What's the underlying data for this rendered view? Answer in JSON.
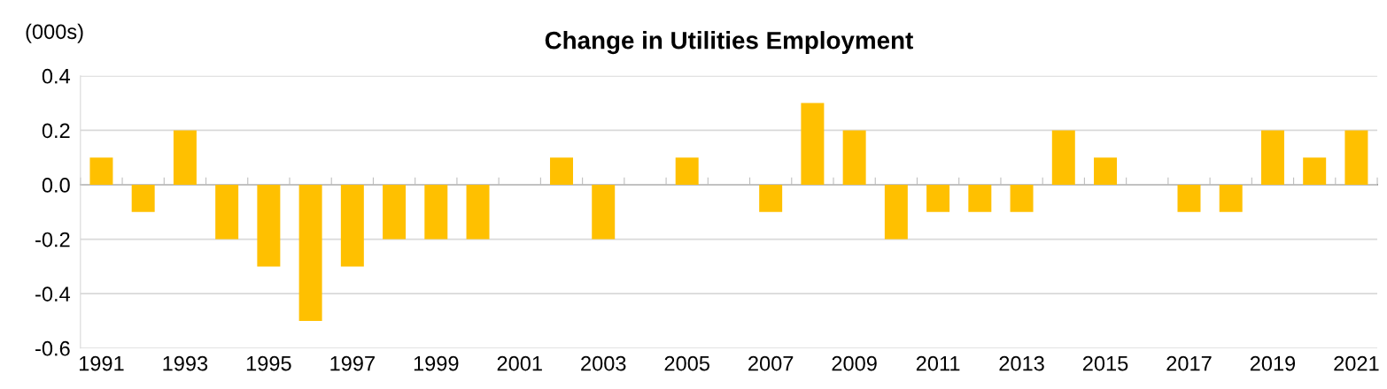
{
  "chart_data": {
    "type": "bar",
    "title": "Change in Utilities Employment",
    "ylabel": "(000s)",
    "categories": [
      "1991",
      null,
      "1993",
      null,
      "1995",
      null,
      "1997",
      null,
      "1999",
      null,
      "2001",
      null,
      "2003",
      null,
      "2005",
      null,
      "2007",
      null,
      "2009",
      null,
      "2011",
      null,
      "2013",
      null,
      "2015",
      null,
      "2017",
      null,
      "2019",
      null,
      "2021"
    ],
    "values": [
      0.1,
      -0.1,
      0.2,
      -0.2,
      -0.3,
      -0.5,
      -0.3,
      -0.2,
      -0.2,
      -0.2,
      0,
      0.1,
      -0.2,
      0,
      0.1,
      0,
      -0.1,
      0.3,
      0.2,
      -0.2,
      -0.1,
      -0.1,
      -0.1,
      0.2,
      0.1,
      0,
      -0.1,
      -0.1,
      0.2,
      0.1,
      0.2
    ],
    "color": "#ffc000",
    "ylim": [
      -0.6,
      0.4
    ],
    "yticks": [
      {
        "value": -0.6,
        "label": "-0.6"
      },
      {
        "value": -0.4,
        "label": "-0.4"
      },
      {
        "value": -0.2,
        "label": "-0.2"
      },
      {
        "value": 0,
        "label": "0.0"
      },
      {
        "value": 0.2,
        "label": "0.2"
      },
      {
        "value": 0.4,
        "label": "0.4"
      }
    ],
    "grid": "y",
    "legend": false
  }
}
